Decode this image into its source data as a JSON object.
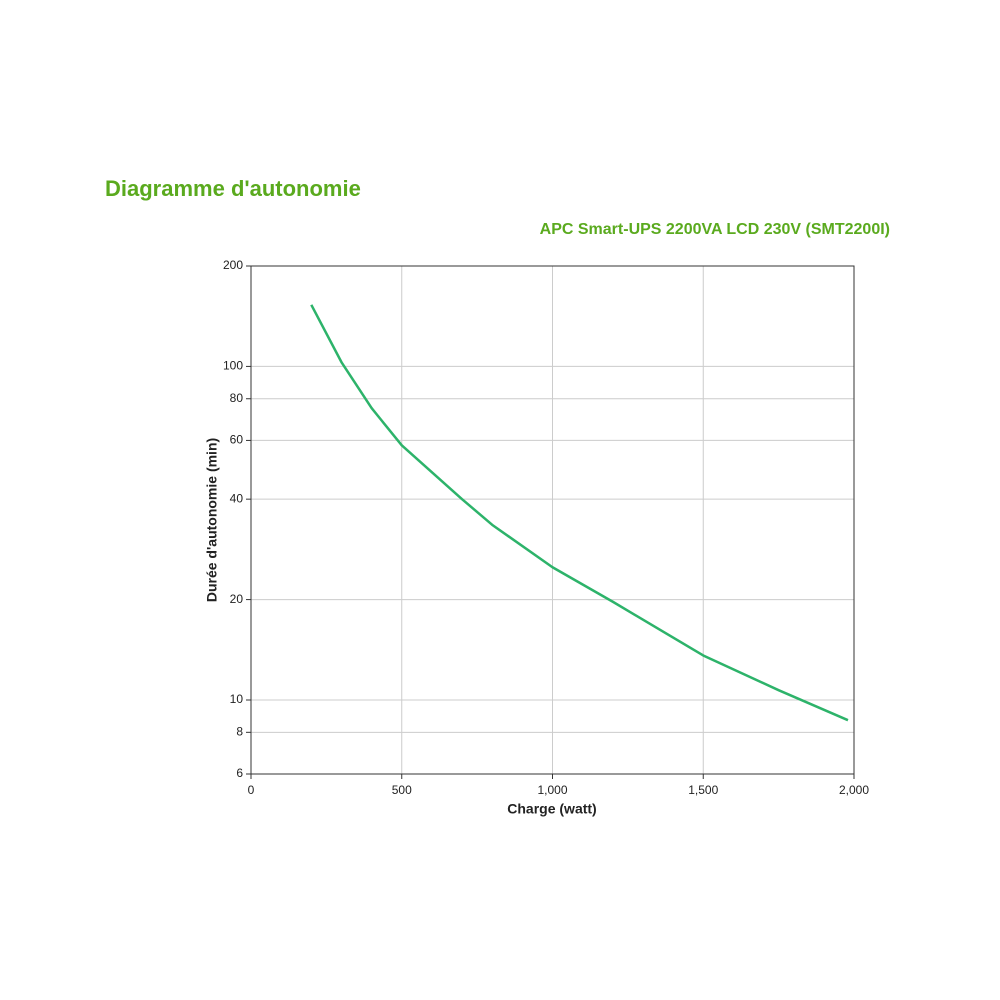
{
  "chart_data": {
    "type": "line",
    "title": "Diagramme d'autonomie",
    "subtitle": "APC Smart-UPS 2200VA LCD 230V (SMT2200I)",
    "x_label": "Charge (watt)",
    "y_label": "Durée d'autonomie (min)",
    "x": [
      200,
      300,
      400,
      500,
      700,
      800,
      1000,
      1200,
      1500,
      1750,
      1980
    ],
    "values": [
      153,
      103,
      75,
      58,
      40,
      33.5,
      25,
      19.7,
      13.6,
      10.7,
      8.7
    ],
    "color": "#2db36a",
    "xlim": [
      0,
      2000
    ],
    "xticks": [
      0,
      500,
      {
        "value": 1000,
        "label": "1,000"
      },
      {
        "value": 1500,
        "label": "1,500"
      },
      {
        "value": 2000,
        "label": "2,000"
      }
    ],
    "ylim": [
      6,
      200
    ],
    "yticks": [
      6,
      8,
      10,
      20,
      40,
      60,
      80,
      100,
      200
    ],
    "y_log": true,
    "grid": true
  }
}
